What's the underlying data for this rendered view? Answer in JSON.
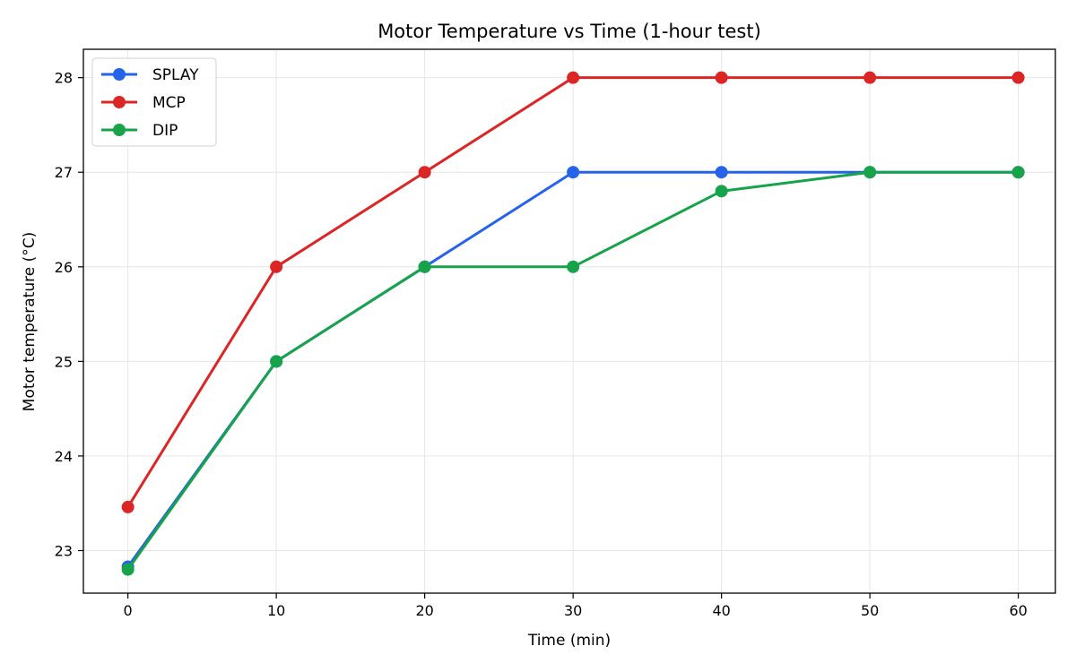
{
  "chart_data": {
    "type": "line",
    "title": "Motor Temperature vs Time (1-hour test)",
    "xlabel": "Time (min)",
    "ylabel": "Motor temperature (°C)",
    "x": [
      0,
      10,
      20,
      30,
      40,
      50,
      60
    ],
    "xlim": [
      -3,
      62.5
    ],
    "ylim": [
      22.55,
      28.3
    ],
    "xticks": [
      0,
      10,
      20,
      30,
      40,
      50,
      60
    ],
    "yticks": [
      23,
      24,
      25,
      26,
      27,
      28
    ],
    "grid": true,
    "legend_position": "top-left",
    "series": [
      {
        "name": "SPLAY",
        "color": "#2563eb",
        "values": [
          22.83,
          25,
          26,
          27,
          27,
          27,
          27
        ]
      },
      {
        "name": "MCP",
        "color": "#dc2626",
        "values": [
          23.46,
          26,
          27,
          28,
          28,
          28,
          28
        ]
      },
      {
        "name": "DIP",
        "color": "#16a34a",
        "values": [
          22.8,
          25,
          26,
          26,
          26.8,
          27,
          27
        ]
      }
    ]
  }
}
